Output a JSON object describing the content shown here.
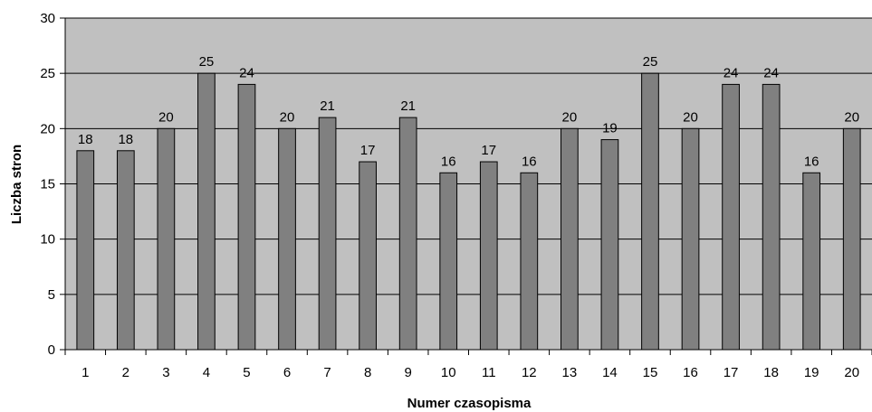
{
  "chart_data": {
    "type": "bar",
    "categories": [
      "1",
      "2",
      "3",
      "4",
      "5",
      "6",
      "7",
      "8",
      "9",
      "10",
      "11",
      "12",
      "13",
      "14",
      "15",
      "16",
      "17",
      "18",
      "19",
      "20"
    ],
    "values": [
      18,
      18,
      20,
      25,
      24,
      20,
      21,
      17,
      21,
      16,
      17,
      16,
      20,
      19,
      25,
      20,
      24,
      24,
      16,
      20
    ],
    "xlabel": "Numer czasopisma",
    "ylabel": "Liczba stron",
    "ylim": [
      0,
      30
    ],
    "yticks": [
      0,
      5,
      10,
      15,
      20,
      25,
      30
    ],
    "grid": true,
    "legend": "none",
    "data_labels": true,
    "colors": {
      "plot_background": "#c0c0c0",
      "bar_fill": "#808080",
      "bar_stroke": "#000000",
      "gridline": "#000000",
      "axis": "#000000"
    }
  }
}
